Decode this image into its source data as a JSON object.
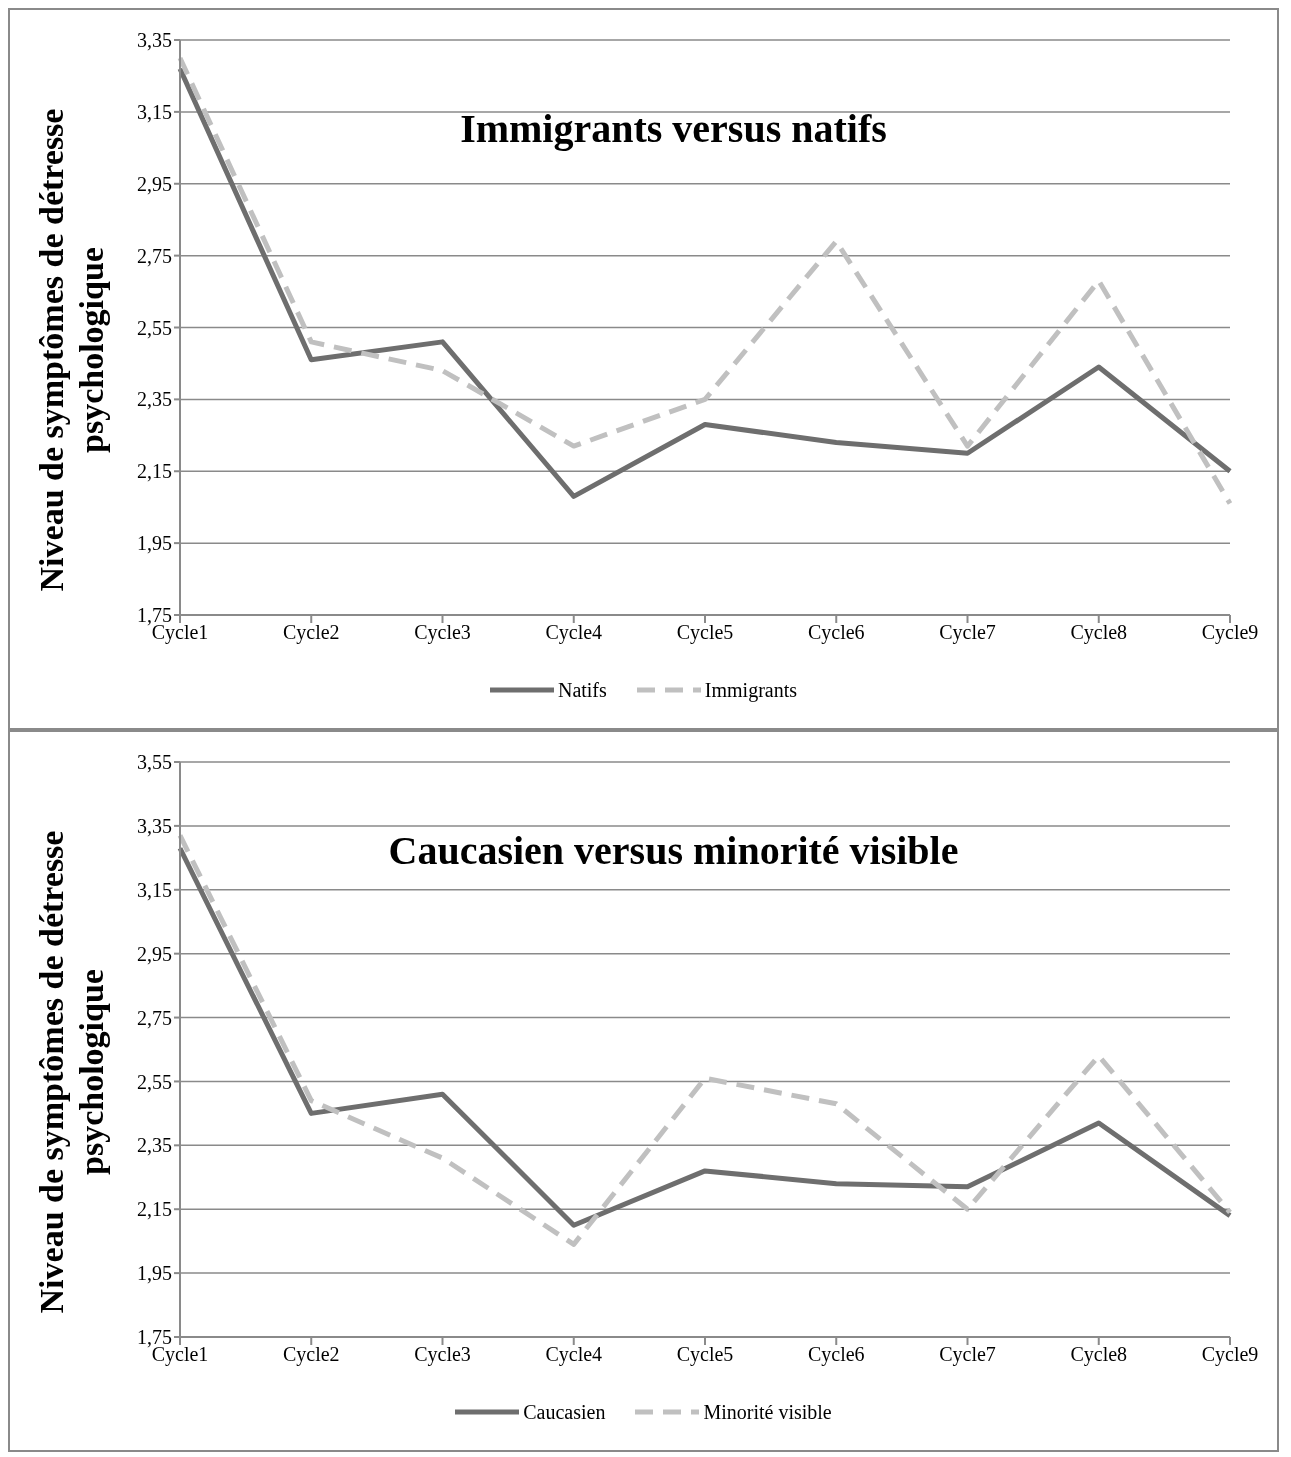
{
  "chart_data": [
    {
      "type": "line",
      "title": "Immigrants versus natifs",
      "ylabel": "Niveau de symptômes de détresse psychologique",
      "categories": [
        "Cycle1",
        "Cycle2",
        "Cycle3",
        "Cycle4",
        "Cycle5",
        "Cycle6",
        "Cycle7",
        "Cycle8",
        "Cycle9"
      ],
      "series": [
        {
          "name": "Natifs",
          "color": "#6e6e6e",
          "line_style": "solid",
          "values": [
            3.27,
            2.46,
            2.51,
            2.08,
            2.28,
            2.23,
            2.2,
            2.44,
            2.15
          ]
        },
        {
          "name": "Immigrants",
          "color": "#c0c0c0",
          "line_style": "dashed",
          "values": [
            3.3,
            2.51,
            2.43,
            2.22,
            2.35,
            2.79,
            2.22,
            2.68,
            2.06
          ]
        }
      ],
      "ylim": [
        1.75,
        3.35
      ],
      "yticks": [
        {
          "value": 1.75,
          "label": "1,75"
        },
        {
          "value": 1.95,
          "label": "1,95"
        },
        {
          "value": 2.15,
          "label": "2,15"
        },
        {
          "value": 2.35,
          "label": "2,35"
        },
        {
          "value": 2.55,
          "label": "2,55"
        },
        {
          "value": 2.75,
          "label": "2,75"
        },
        {
          "value": 2.95,
          "label": "2,95"
        },
        {
          "value": 3.15,
          "label": "3,15"
        },
        {
          "value": 3.35,
          "label": "3,35"
        }
      ],
      "grid": "y",
      "legend": "bottom",
      "marker": "none"
    },
    {
      "type": "line",
      "title": "Caucasien versus minorité visible",
      "ylabel": "Niveau de symptômes de détresse psychologique",
      "categories": [
        "Cycle1",
        "Cycle2",
        "Cycle3",
        "Cycle4",
        "Cycle5",
        "Cycle6",
        "Cycle7",
        "Cycle8",
        "Cycle9"
      ],
      "series": [
        {
          "name": "Caucasien",
          "color": "#6e6e6e",
          "line_style": "solid",
          "values": [
            3.28,
            2.45,
            2.51,
            2.1,
            2.27,
            2.23,
            2.22,
            2.42,
            2.13
          ]
        },
        {
          "name": "Minorité visible",
          "color": "#c0c0c0",
          "line_style": "dashed",
          "values": [
            3.32,
            2.49,
            2.31,
            2.04,
            2.56,
            2.48,
            2.15,
            2.63,
            2.14
          ]
        }
      ],
      "ylim": [
        1.75,
        3.55
      ],
      "yticks": [
        {
          "value": 1.75,
          "label": "1,75"
        },
        {
          "value": 1.95,
          "label": "1,95"
        },
        {
          "value": 2.15,
          "label": "2,15"
        },
        {
          "value": 2.35,
          "label": "2,35"
        },
        {
          "value": 2.55,
          "label": "2,55"
        },
        {
          "value": 2.75,
          "label": "2,75"
        },
        {
          "value": 2.95,
          "label": "2,95"
        },
        {
          "value": 3.15,
          "label": "3,15"
        },
        {
          "value": 3.35,
          "label": "3,35"
        },
        {
          "value": 3.55,
          "label": "3,55"
        }
      ],
      "grid": "y",
      "legend": "bottom",
      "marker": "none"
    }
  ]
}
